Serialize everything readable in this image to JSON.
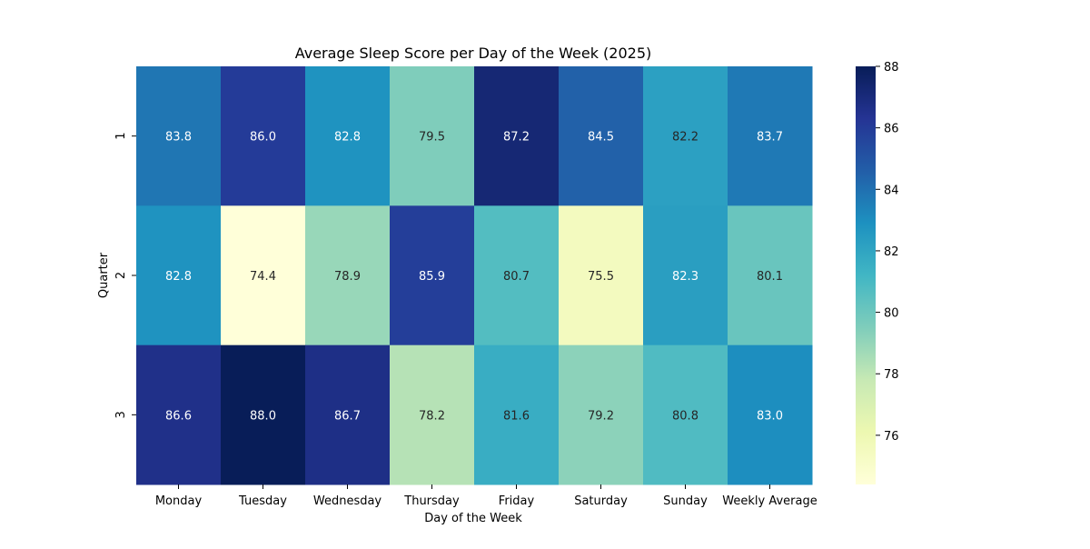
{
  "chart_data": {
    "type": "heatmap",
    "title": "Average Sleep Score per Day of the Week (2025)",
    "xlabel": "Day of the Week",
    "ylabel": "Quarter",
    "x_categories": [
      "Monday",
      "Tuesday",
      "Wednesday",
      "Thursday",
      "Friday",
      "Saturday",
      "Sunday",
      "Weekly Average"
    ],
    "y_categories": [
      "1",
      "2",
      "3"
    ],
    "values": [
      [
        83.8,
        86.0,
        82.8,
        79.5,
        87.2,
        84.5,
        82.2,
        83.7
      ],
      [
        82.8,
        74.4,
        78.9,
        85.9,
        80.7,
        75.5,
        82.3,
        80.1
      ],
      [
        86.6,
        88.0,
        86.7,
        78.2,
        81.6,
        79.2,
        80.8,
        83.0
      ]
    ],
    "cell_labels": [
      [
        "83.8",
        "86.0",
        "82.8",
        "79.5",
        "87.2",
        "84.5",
        "82.2",
        "83.7"
      ],
      [
        "82.8",
        "74.4",
        "78.9",
        "85.9",
        "80.7",
        "75.5",
        "82.3",
        "80.1"
      ],
      [
        "86.6",
        "88.0",
        "86.7",
        "78.2",
        "81.6",
        "79.2",
        "80.8",
        "83.0"
      ]
    ],
    "colormap": "YlGnBu",
    "color_range": [
      74.4,
      88.0
    ],
    "colorbar_ticks": [
      76,
      78,
      80,
      82,
      84,
      86,
      88
    ],
    "colorbar_tick_labels": [
      "76",
      "78",
      "80",
      "82",
      "84",
      "86",
      "88"
    ],
    "grid": false,
    "legend": "colorbar-right"
  }
}
